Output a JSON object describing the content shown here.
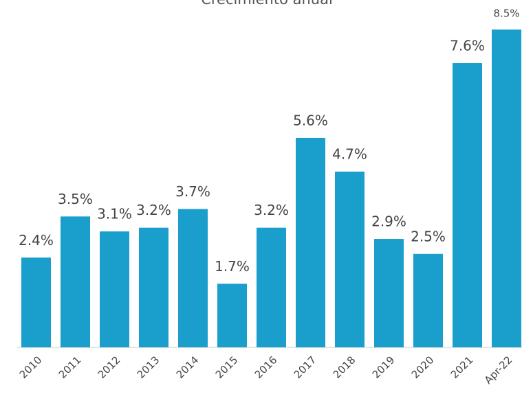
{
  "chart_data": {
    "type": "bar",
    "title": "Crecimiento anual",
    "categories": [
      "2010",
      "2011",
      "2012",
      "2013",
      "2014",
      "2015",
      "2016",
      "2017",
      "2018",
      "2019",
      "2020",
      "2021",
      "Apr-22"
    ],
    "values": [
      2.4,
      3.5,
      3.1,
      3.2,
      3.7,
      1.7,
      3.2,
      5.6,
      4.7,
      2.9,
      2.5,
      7.6,
      8.5
    ],
    "value_labels": [
      "2.4%",
      "3.5%",
      "3.1%",
      "3.2%",
      "3.7%",
      "1.7%",
      "3.2%",
      "5.6%",
      "4.7%",
      "2.9%",
      "2.5%",
      "7.6%",
      "8.5%"
    ],
    "color": "#1a9fcc",
    "ylim": [
      0,
      8.5
    ]
  }
}
